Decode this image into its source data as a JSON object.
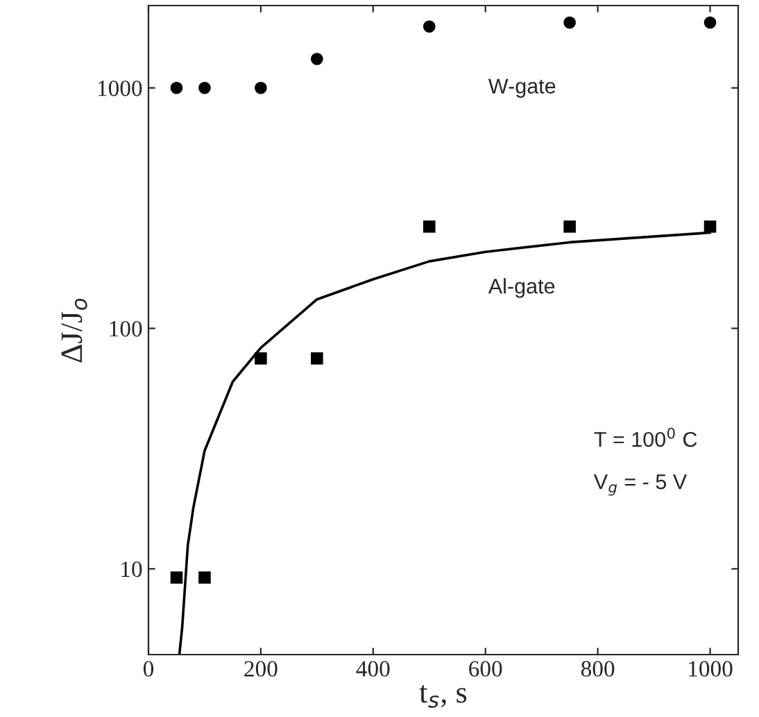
{
  "chart_data": {
    "type": "scatter",
    "xlabel": "t$_{s}$, s",
    "ylabel": "ΔJ/J$_{o}$",
    "log": "y",
    "xlim": [
      0,
      1050
    ],
    "ylim": [
      4.4,
      2200
    ],
    "xticks": [
      0,
      200,
      400,
      600,
      800,
      1000
    ],
    "yticks": [
      10,
      100,
      1000
    ],
    "grid": false,
    "legend": false,
    "series": [
      {
        "name": "W-gate",
        "marker": "circle",
        "color": "#000000",
        "x": [
          50,
          100,
          200,
          300,
          500,
          750,
          1000
        ],
        "values": [
          1000,
          1000,
          1000,
          1320,
          1800,
          1870,
          1870
        ]
      },
      {
        "name": "Al-gate",
        "marker": "square",
        "color": "#000000",
        "x": [
          50,
          100,
          200,
          300,
          500,
          750,
          1000
        ],
        "values": [
          9.2,
          9.2,
          75,
          75,
          265,
          265,
          265
        ]
      },
      {
        "type": "line",
        "marker": "none",
        "color": "#000000",
        "x": [
          55,
          60,
          70,
          80,
          100,
          150,
          200,
          300,
          400,
          500,
          600,
          750,
          1000
        ],
        "values": [
          4.4,
          5.7,
          12.5,
          18,
          31,
          60,
          83,
          132,
          160,
          190,
          208,
          228,
          250
        ]
      }
    ],
    "annotations": [
      "T = 100$^{0}$ C",
      "V$_{g}$ = - 5 V"
    ]
  }
}
